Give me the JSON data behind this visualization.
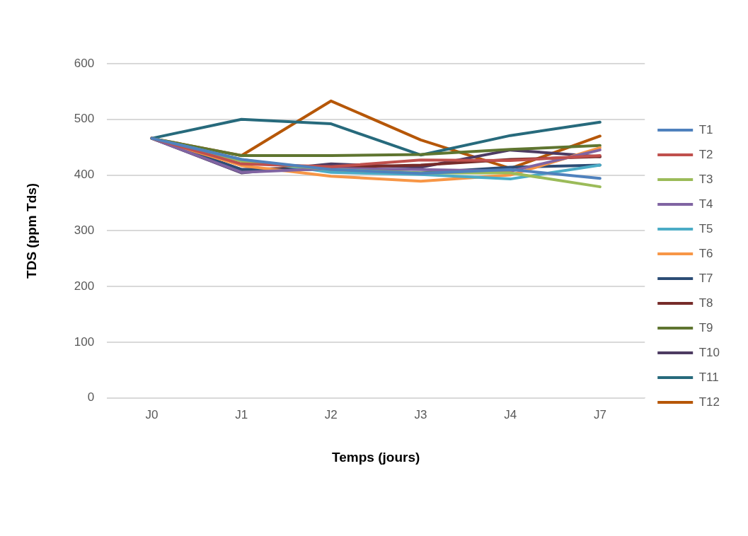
{
  "chart_data": {
    "type": "line",
    "xlabel": "Temps (jours)",
    "ylabel": "TDS (ppm Tds)",
    "categories": [
      "J0",
      "J1",
      "J2",
      "J3",
      "J4",
      "J7"
    ],
    "ylim": [
      0,
      600
    ],
    "yticks": [
      0,
      100,
      200,
      300,
      400,
      500,
      600
    ],
    "grid": "y",
    "legend": "right",
    "marker": "none",
    "line_style": "solid",
    "series": [
      {
        "name": "T1",
        "color": "#4f81bd",
        "values": [
          466,
          428,
          410,
          403,
          410,
          394
        ]
      },
      {
        "name": "T2",
        "color": "#c0504d",
        "values": [
          466,
          420,
          415,
          427,
          426,
          435
        ]
      },
      {
        "name": "T3",
        "color": "#9bbb59",
        "values": [
          466,
          425,
          410,
          404,
          404,
          379
        ]
      },
      {
        "name": "T4",
        "color": "#8064a2",
        "values": [
          466,
          405,
          412,
          410,
          407,
          445
        ]
      },
      {
        "name": "T5",
        "color": "#4bacc6",
        "values": [
          466,
          428,
          405,
          401,
          393,
          418
        ]
      },
      {
        "name": "T6",
        "color": "#f79646",
        "values": [
          466,
          417,
          398,
          389,
          400,
          449
        ]
      },
      {
        "name": "T7",
        "color": "#2c4d75",
        "values": [
          466,
          410,
          410,
          404,
          414,
          418
        ]
      },
      {
        "name": "T8",
        "color": "#772c2a",
        "values": [
          466,
          410,
          414,
          418,
          428,
          433
        ]
      },
      {
        "name": "T9",
        "color": "#5f7530",
        "values": [
          466,
          435,
          435,
          437,
          446,
          453
        ]
      },
      {
        "name": "T10",
        "color": "#4d3b62",
        "values": [
          466,
          404,
          420,
          414,
          445,
          433
        ]
      },
      {
        "name": "T11",
        "color": "#276a7c",
        "values": [
          466,
          500,
          492,
          436,
          471,
          495
        ]
      },
      {
        "name": "T12",
        "color": "#b65708",
        "values": [
          466,
          435,
          533,
          463,
          412,
          470
        ]
      }
    ]
  }
}
